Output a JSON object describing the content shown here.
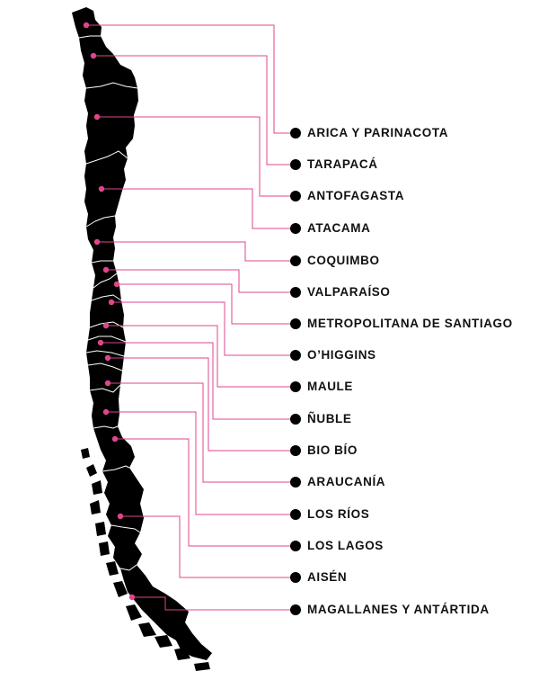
{
  "colors": {
    "land": "#000000",
    "border": "#ffffff",
    "leader_line": "#e0458c",
    "pin_dot": "#e0458c",
    "label_dot": "#000000",
    "label_text": "#111111"
  },
  "regions": [
    {
      "id": "arica",
      "name": "ARICA Y PARINACOTA"
    },
    {
      "id": "tarapaca",
      "name": "TARAPACÁ"
    },
    {
      "id": "antofagasta",
      "name": "ANTOFAGASTA"
    },
    {
      "id": "atacama",
      "name": "ATACAMA"
    },
    {
      "id": "coquimbo",
      "name": "COQUIMBO"
    },
    {
      "id": "valparaiso",
      "name": "VALPARAÍSO"
    },
    {
      "id": "metropolitana",
      "name": "METROPOLITANA DE SANTIAGO"
    },
    {
      "id": "ohiggins",
      "name": "O’HIGGINS"
    },
    {
      "id": "maule",
      "name": "MAULE"
    },
    {
      "id": "nuble",
      "name": "ÑUBLE"
    },
    {
      "id": "biobio",
      "name": "BIO BÍO"
    },
    {
      "id": "araucania",
      "name": "ARAUCANÍA"
    },
    {
      "id": "losrios",
      "name": "LOS RÍOS"
    },
    {
      "id": "loslagos",
      "name": "LOS LAGOS"
    },
    {
      "id": "aisen",
      "name": "AISÉN"
    },
    {
      "id": "magallanes",
      "name": "MAGALLANES Y ANTÁRTIDA"
    }
  ]
}
